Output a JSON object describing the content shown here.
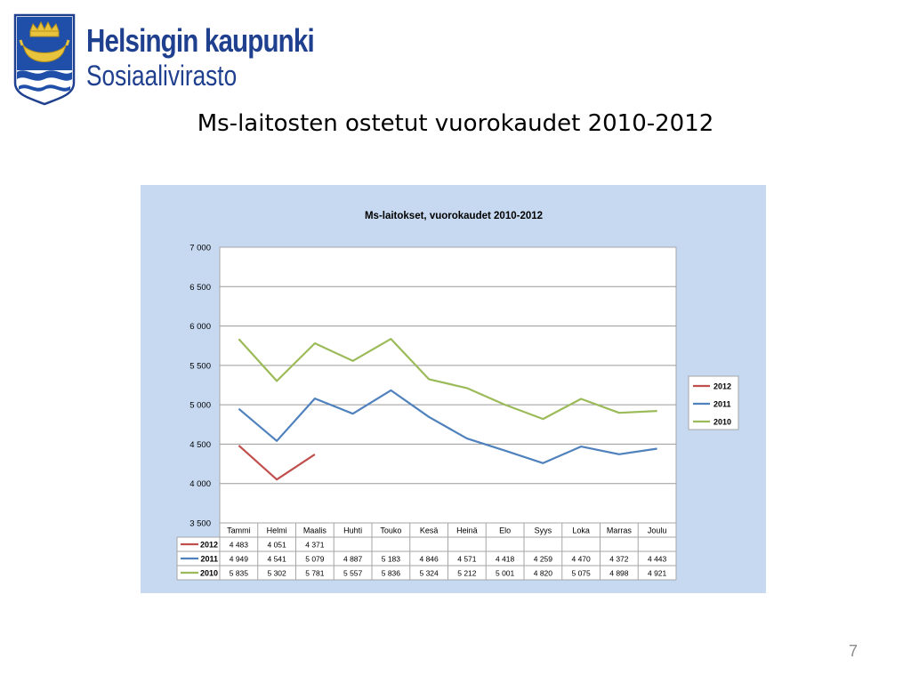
{
  "header": {
    "org_name": "Helsingin kaupunki",
    "department": "Sosiaalivirasto"
  },
  "slide": {
    "title": "Ms-laitosten ostetut vuorokaudet 2010-2012",
    "page_number": "7"
  },
  "colors": {
    "brand": "#1f3f8f",
    "panel": "#c6d9f1",
    "series_2012": "#c0504d",
    "series_2011": "#4f81bd",
    "series_2010": "#9bbb59"
  },
  "chart_data": {
    "type": "line",
    "title": "Ms-laitokset, vuorokaudet 2010-2012",
    "xlabel": "",
    "ylabel": "",
    "ylim": [
      3500,
      7000
    ],
    "y_ticks": [
      3500,
      4000,
      4500,
      5000,
      5500,
      6000,
      6500,
      7000
    ],
    "y_tick_labels": [
      "3 500",
      "4 000",
      "4 500",
      "5 000",
      "5 500",
      "6 000",
      "6 500",
      "7 000"
    ],
    "grid": true,
    "legend_position": "right",
    "data_table": true,
    "categories": [
      "Tammi",
      "Helmi",
      "Maalis",
      "Huhti",
      "Touko",
      "Kesä",
      "Heinä",
      "Elo",
      "Syys",
      "Loka",
      "Marras",
      "Joulu"
    ],
    "series": [
      {
        "name": "2012",
        "color": "#c0504d",
        "values": [
          4483,
          4051,
          4371,
          null,
          null,
          null,
          null,
          null,
          null,
          null,
          null,
          null
        ],
        "labels": [
          "4 483",
          "4 051",
          "4 371",
          "",
          "",
          "",
          "",
          "",
          "",
          "",
          "",
          ""
        ]
      },
      {
        "name": "2011",
        "color": "#4f81bd",
        "values": [
          4949,
          4541,
          5079,
          4887,
          5183,
          4846,
          4571,
          4418,
          4259,
          4470,
          4372,
          4443
        ],
        "labels": [
          "4 949",
          "4 541",
          "5 079",
          "4 887",
          "5 183",
          "4 846",
          "4 571",
          "4 418",
          "4 259",
          "4 470",
          "4 372",
          "4 443"
        ]
      },
      {
        "name": "2010",
        "color": "#9bbb59",
        "values": [
          5835,
          5302,
          5781,
          5557,
          5836,
          5324,
          5212,
          5001,
          4820,
          5075,
          4898,
          4921
        ],
        "labels": [
          "5 835",
          "5 302",
          "5 781",
          "5 557",
          "5 836",
          "5 324",
          "5 212",
          "5 001",
          "4 820",
          "5 075",
          "4 898",
          "4 921"
        ]
      }
    ]
  }
}
